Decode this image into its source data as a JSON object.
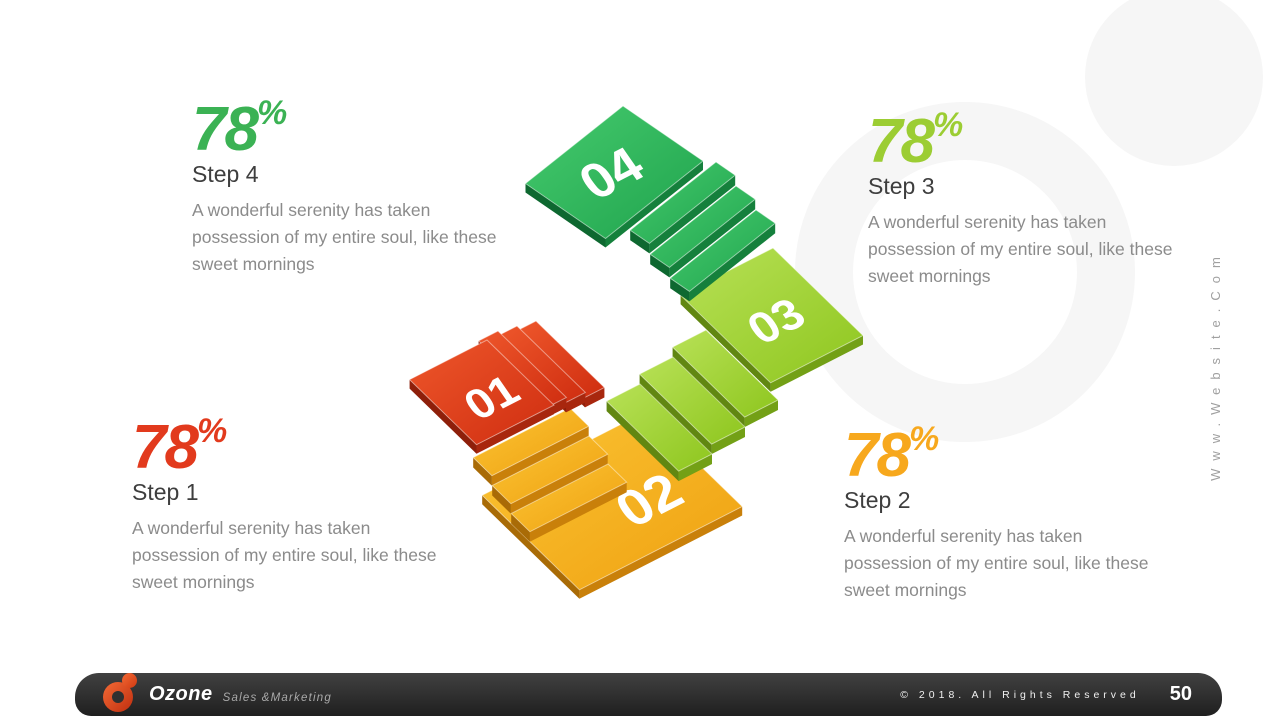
{
  "steps": [
    {
      "number": "01",
      "title": "Step 1",
      "percent": "78",
      "percent_sign": "%",
      "body": "A wonderful serenity has taken\npossession of my entire soul, like these\nsweet mornings",
      "accent": "#e23a1d",
      "plank": {
        "light": "#ee572b",
        "dark": "#cf2d10",
        "edge_right": "#a8270e",
        "edge_left": "#8e1f0a"
      }
    },
    {
      "number": "02",
      "title": "Step 2",
      "percent": "78",
      "percent_sign": "%",
      "body": "A wonderful serenity has taken\npossession of my entire soul, like these\nsweet mornings",
      "accent": "#f7a81d",
      "plank": {
        "light": "#fbc535",
        "dark": "#efa010",
        "edge_right": "#c9800a",
        "edge_left": "#a96b06"
      }
    },
    {
      "number": "03",
      "title": "Step 3",
      "percent": "78",
      "percent_sign": "%",
      "body": "A wonderful serenity has taken\npossession of my entire soul, like these\nsweet mornings",
      "accent": "#9ccd33",
      "plank": {
        "light": "#b8e157",
        "dark": "#8ec61e",
        "edge_right": "#73a016",
        "edge_left": "#618711"
      }
    },
    {
      "number": "04",
      "title": "Step 4",
      "percent": "78",
      "percent_sign": "%",
      "body": "A wonderful serenity has taken\npossession of my entire soul, like these\nsweet mornings",
      "accent": "#3bb254",
      "plank": {
        "light": "#46cb6e",
        "dark": "#1fa34d",
        "edge_right": "#15803c",
        "edge_left": "#0e6830"
      }
    }
  ],
  "footer": {
    "brand": "Ozone",
    "tagline": "Sales &Marketing",
    "copyright": "© 2018. All Rights Reserved",
    "page_number": "50"
  },
  "watermark": {
    "text": "Www.Website.Com"
  }
}
